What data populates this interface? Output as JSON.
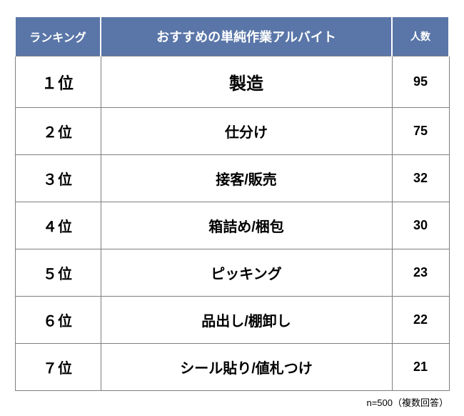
{
  "table": {
    "header_bg": "#5a76a8",
    "header_text_color": "#ffffff",
    "border_color": "#7f7f7f",
    "columns": {
      "rank": {
        "label": "ランキング",
        "fontsize": 16
      },
      "job": {
        "label": "おすすめの単純作業アルバイト",
        "fontsize": 18
      },
      "count": {
        "label": "人数",
        "fontsize": 14
      }
    },
    "rows": [
      {
        "rank": "１位",
        "job": "製造",
        "count": "95"
      },
      {
        "rank": "２位",
        "job": "仕分け",
        "count": "75"
      },
      {
        "rank": "３位",
        "job": "接客/販売",
        "count": "32"
      },
      {
        "rank": "４位",
        "job": "箱詰め/梱包",
        "count": "30"
      },
      {
        "rank": "５位",
        "job": "ピッキング",
        "count": "23"
      },
      {
        "rank": "６位",
        "job": "品出し/棚卸し",
        "count": "22"
      },
      {
        "rank": "７位",
        "job": "シール貼り/値札つけ",
        "count": "21"
      }
    ]
  },
  "footnote": "n=500（複数回答）"
}
